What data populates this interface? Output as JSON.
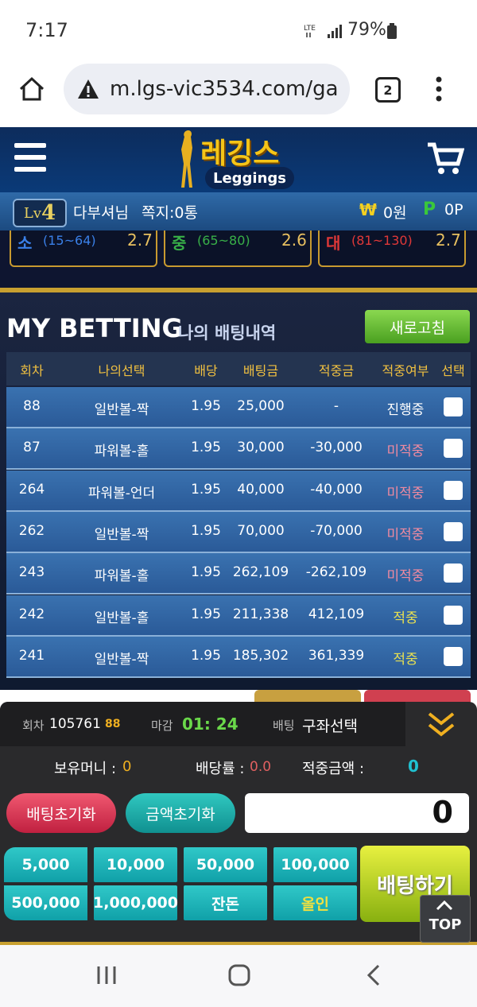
{
  "status": {
    "time": "7:17",
    "battery": "79%"
  },
  "browser": {
    "url": "m.lgs-vic3534.com/ga",
    "tabs": "2"
  },
  "header": {
    "logo_ko": "레깅스",
    "logo_en": "Leggings"
  },
  "user": {
    "level_prefix": "Lv",
    "level": "4",
    "name": "다부셔님",
    "messages": "쪽지:0통",
    "currency_icon": "₩",
    "money": "0원",
    "point_icon": "P",
    "points": "0P"
  },
  "odds": [
    {
      "label": "소",
      "range": "(15~64)",
      "odds": "2.7"
    },
    {
      "label": "중",
      "range": "(65~80)",
      "odds": "2.6"
    },
    {
      "label": "대",
      "range": "(81~130)",
      "odds": "2.7"
    }
  ],
  "betting": {
    "title": "MY BETTING",
    "subtitle": "나의 배팅내역",
    "refresh": "새로고침",
    "columns": [
      "회차",
      "나의선택",
      "배당",
      "배팅금",
      "적중금",
      "적중여부",
      "선택"
    ],
    "rows": [
      [
        "88",
        "일반볼-짝",
        "1.95",
        "25,000",
        "-",
        "진행중"
      ],
      [
        "87",
        "파워볼-홀",
        "1.95",
        "30,000",
        "-30,000",
        "미적중"
      ],
      [
        "264",
        "파워볼-언더",
        "1.95",
        "40,000",
        "-40,000",
        "미적중"
      ],
      [
        "262",
        "일반볼-짝",
        "1.95",
        "70,000",
        "-70,000",
        "미적중"
      ],
      [
        "243",
        "파워볼-홀",
        "1.95",
        "262,109",
        "-262,109",
        "미적중"
      ],
      [
        "242",
        "일반볼-홀",
        "1.95",
        "211,338",
        "412,109",
        "적중"
      ],
      [
        "241",
        "일반볼-짝",
        "1.95",
        "185,302",
        "361,339",
        "적중"
      ]
    ]
  },
  "panel": {
    "round_label": "회차",
    "round": "105761",
    "round_sub": "88",
    "deadline_label": "마감",
    "deadline": "01: 24",
    "bet_label": "배팅",
    "bet_select": "구좌선택",
    "holding_label": "보유머니 :",
    "holding_value": "0",
    "odds_label": "배당률 :",
    "odds_value": "0.0",
    "win_label": "적중금액 :",
    "win_value": "0",
    "reset_bet": "배팅초기화",
    "reset_amount": "금액초기화",
    "amount": "0",
    "chips": [
      "5,000",
      "10,000",
      "50,000",
      "100,000",
      "500,000",
      "1,000,000",
      "잔돈",
      "올인"
    ],
    "bet_button": "배팅하기",
    "top": "TOP"
  }
}
